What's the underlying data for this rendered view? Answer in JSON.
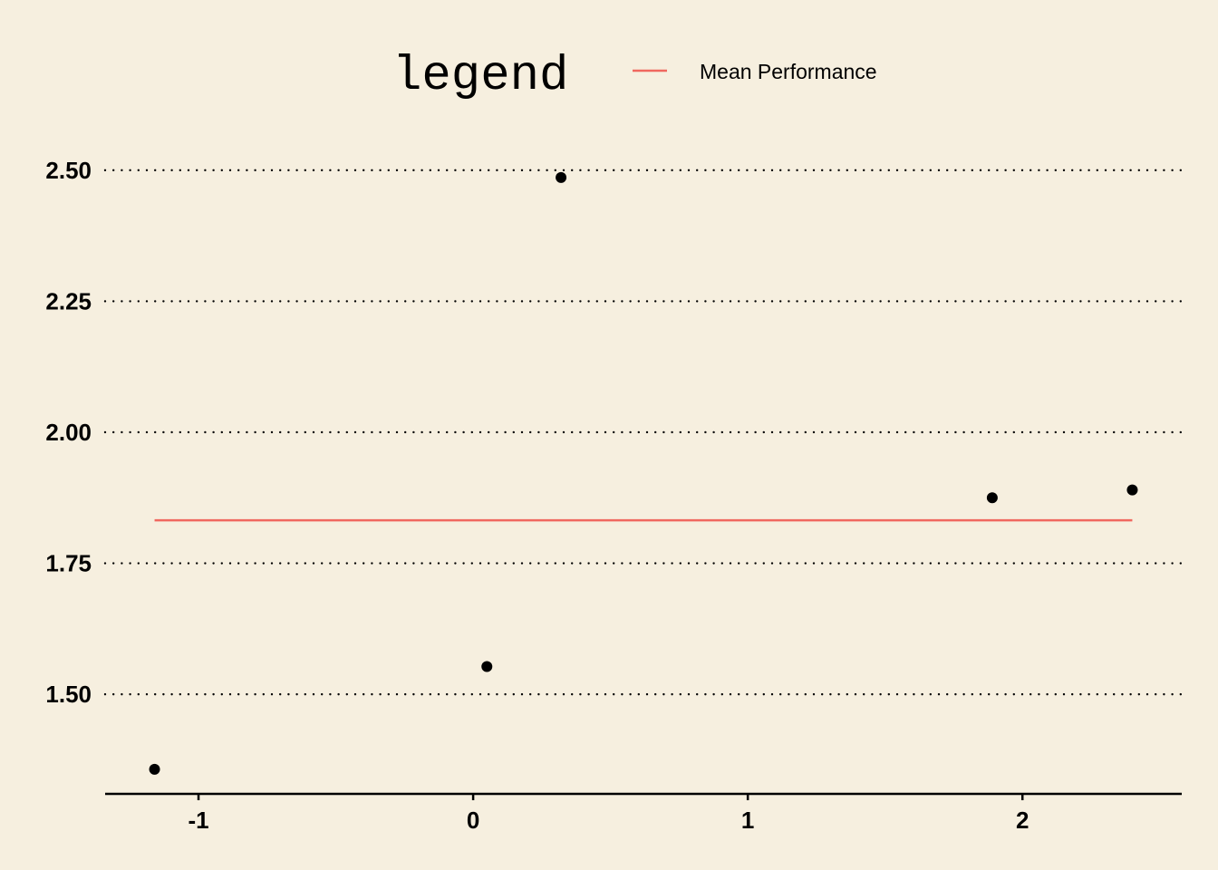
{
  "chart_data": {
    "type": "scatter",
    "x": [
      -1.16,
      0.05,
      0.32,
      1.89,
      2.4
    ],
    "y": [
      1.357,
      1.553,
      2.486,
      1.875,
      1.89
    ],
    "xlim": [
      -1.34,
      2.58
    ],
    "ylim": [
      1.31,
      2.6
    ],
    "xticks": [
      -1,
      0,
      1,
      2
    ],
    "yticks": [
      1.5,
      1.75,
      2.0,
      2.25,
      2.5
    ],
    "xtick_labels": [
      "-1",
      "0",
      "1",
      "2"
    ],
    "ytick_labels": [
      "1.50",
      "1.75",
      "2.00",
      "2.25",
      "2.50"
    ],
    "mean_line": {
      "name": "Mean Performance",
      "value": 1.832,
      "x_start": -1.16,
      "x_end": 2.4,
      "color": "#f0685f"
    },
    "grid": "horizontal dotted",
    "point_color": "#000000",
    "legend": {
      "title": "legend",
      "placement": "top",
      "entries": [
        "Mean Performance"
      ]
    }
  }
}
